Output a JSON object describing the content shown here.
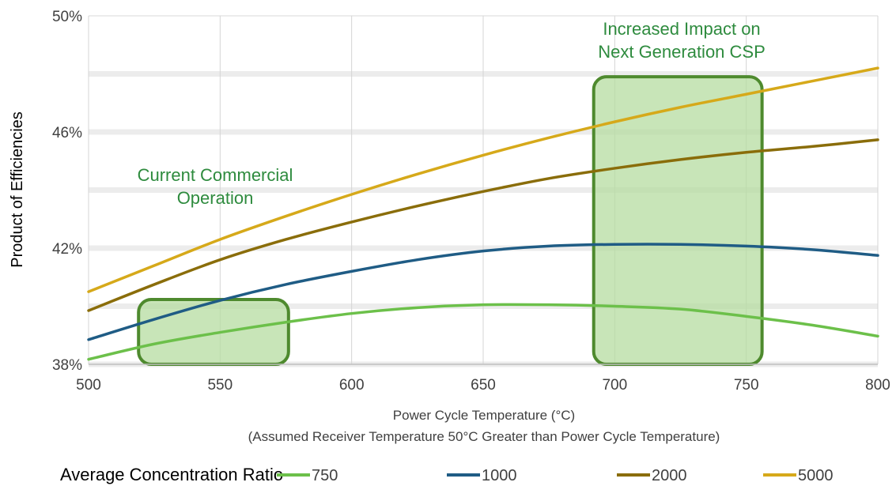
{
  "chart_data": {
    "type": "line",
    "xlabel": "Power Cycle Temperature (°C)",
    "xlabel_note": "(Assumed Receiver Temperature 50°C Greater than Power Cycle Temperature)",
    "ylabel": "Product of Efficiencies",
    "xlim": [
      500,
      800
    ],
    "ylim": [
      0.38,
      0.5
    ],
    "x_ticks": [
      500,
      550,
      600,
      650,
      700,
      750,
      800
    ],
    "x_tick_labels": [
      "500",
      "550",
      "600",
      "650",
      "700",
      "750",
      "800"
    ],
    "y_ticks": [
      0.38,
      0.42,
      0.46,
      0.5
    ],
    "y_tick_labels": [
      "38%",
      "42%",
      "46%",
      "50%"
    ],
    "vertical_grid": true,
    "legend": {
      "title": "Average Concentration Ratio",
      "placement": "bottom"
    },
    "x": [
      500,
      525,
      550,
      575,
      600,
      625,
      650,
      675,
      700,
      725,
      750,
      775,
      800
    ],
    "series": [
      {
        "name": "750",
        "color": "#6cc04a",
        "values": [
          0.3817,
          0.387,
          0.391,
          0.3945,
          0.3975,
          0.3995,
          0.4005,
          0.4005,
          0.4,
          0.399,
          0.3965,
          0.3935,
          0.3897
        ]
      },
      {
        "name": "1000",
        "color": "#1f5c85",
        "values": [
          0.3885,
          0.3955,
          0.402,
          0.4075,
          0.412,
          0.416,
          0.419,
          0.4207,
          0.4213,
          0.4213,
          0.4207,
          0.4195,
          0.4175
        ]
      },
      {
        "name": "2000",
        "color": "#8a6d0a",
        "values": [
          0.3985,
          0.4075,
          0.416,
          0.423,
          0.429,
          0.4345,
          0.4395,
          0.444,
          0.4475,
          0.4505,
          0.453,
          0.455,
          0.4573
        ]
      },
      {
        "name": "5000",
        "color": "#d6a91a",
        "values": [
          0.405,
          0.414,
          0.423,
          0.431,
          0.4385,
          0.4455,
          0.452,
          0.458,
          0.4635,
          0.4685,
          0.473,
          0.4775,
          0.482
        ]
      }
    ],
    "regions": [
      {
        "label": "Current Commercial Operation",
        "label_lines": [
          "Current Commercial",
          "Operation"
        ],
        "x_range": [
          519,
          576
        ],
        "y_range": [
          0.38,
          0.4023
        ]
      },
      {
        "label": "Increased Impact on Next Generation CSP",
        "label_lines": [
          "Increased Impact on",
          "Next Generation CSP"
        ],
        "x_range": [
          692,
          756
        ],
        "y_range": [
          0.38,
          0.479
        ]
      }
    ],
    "region_fill": "#b5dca0",
    "region_stroke": "#4e8a2e",
    "annotation_color": "#2e8b3e"
  }
}
